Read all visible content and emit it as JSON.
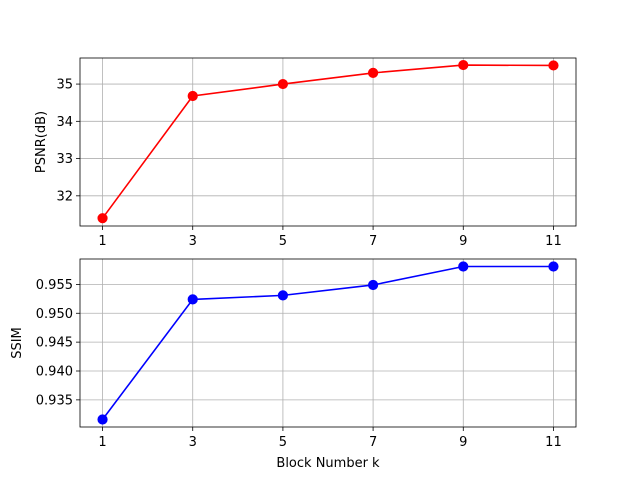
{
  "chart_data": [
    {
      "type": "line",
      "x": [
        1,
        3,
        5,
        7,
        9,
        11
      ],
      "series": [
        {
          "values": [
            31.4,
            34.68,
            35.0,
            35.3,
            35.51,
            35.5
          ],
          "color": "#ff0000",
          "marker": "circle"
        }
      ],
      "xticks": [
        "1",
        "3",
        "5",
        "7",
        "9",
        "11"
      ],
      "yticks": [
        32,
        33,
        34,
        35
      ],
      "ytick_labels": [
        "32",
        "33",
        "34",
        "35"
      ],
      "xlim": [
        0.5,
        11.5
      ],
      "ylim": [
        31.19,
        35.7
      ],
      "xlabel": "",
      "ylabel": "PSNR(dB)",
      "grid": true
    },
    {
      "type": "line",
      "x": [
        1,
        3,
        5,
        7,
        9,
        11
      ],
      "series": [
        {
          "values": [
            0.9316,
            0.9524,
            0.9531,
            0.9549,
            0.9581,
            0.9581
          ],
          "color": "#0000ff",
          "marker": "circle"
        }
      ],
      "xticks": [
        "1",
        "3",
        "5",
        "7",
        "9",
        "11"
      ],
      "yticks": [
        0.935,
        0.94,
        0.945,
        0.95,
        0.955
      ],
      "ytick_labels": [
        "0.935",
        "0.940",
        "0.945",
        "0.950",
        "0.955"
      ],
      "xlim": [
        0.5,
        11.5
      ],
      "ylim": [
        0.9303,
        0.9594
      ],
      "xlabel": "Block Number k",
      "ylabel": "SSIM",
      "grid": true
    }
  ]
}
